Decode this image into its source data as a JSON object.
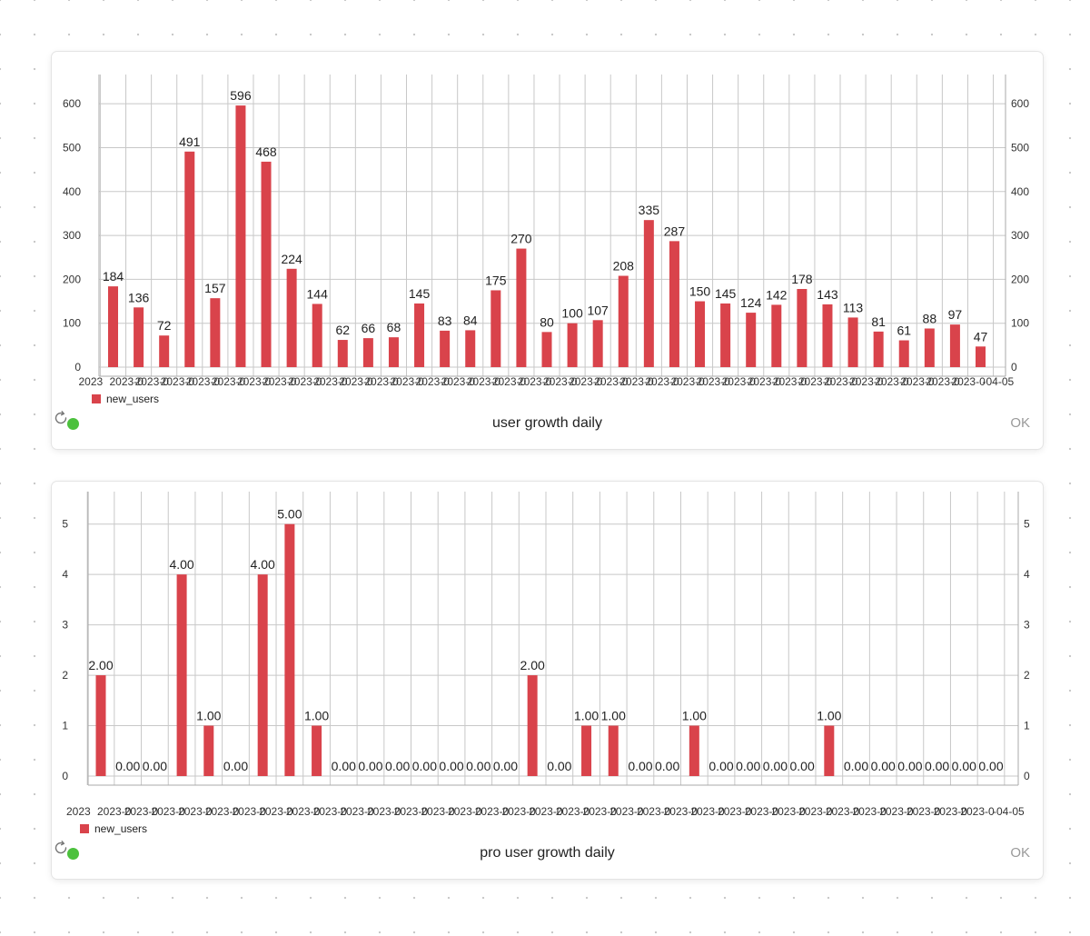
{
  "colors": {
    "bar": "#d9434b",
    "grid": "#c8c8c8",
    "status_ok": "#4cc13d"
  },
  "panels": [
    {
      "title": "user growth daily",
      "status": "OK",
      "status_icon": "status-dot-green",
      "refresh_icon": "refresh-icon",
      "legend": "new_users"
    },
    {
      "title": "pro user growth daily",
      "status": "OK",
      "status_icon": "status-dot-green",
      "refresh_icon": "refresh-icon",
      "legend": "new_users"
    }
  ],
  "chart_data": [
    {
      "type": "bar",
      "title": "user growth daily",
      "series": [
        {
          "name": "new_users",
          "values": [
            184,
            136,
            72,
            491,
            157,
            596,
            468,
            224,
            144,
            62,
            66,
            68,
            145,
            83,
            84,
            175,
            270,
            80,
            100,
            107,
            208,
            335,
            287,
            150,
            145,
            124,
            142,
            178,
            143,
            113,
            81,
            61,
            88,
            97,
            47
          ]
        }
      ],
      "ylim": [
        0,
        650
      ],
      "yticks": [
        0,
        100,
        200,
        300,
        400,
        500,
        600
      ],
      "ytick_labels": [
        "0",
        "100",
        "200",
        "300",
        "400",
        "500",
        "600"
      ],
      "data_labels": [
        "184",
        "136",
        "72",
        "491",
        "157",
        "596",
        "468",
        "224",
        "144",
        "62",
        "66",
        "68",
        "145",
        "83",
        "84",
        "175",
        "270",
        "80",
        "100",
        "107",
        "208",
        "335",
        "287",
        "150",
        "145",
        "124",
        "142",
        "178",
        "143",
        "113",
        "81",
        "61",
        "88",
        "97",
        "47"
      ],
      "x_first_label": "2023",
      "x_last_label": "-04-05",
      "x_overlap_label": "2023-0",
      "grid": true,
      "legend_position": "bottom-left",
      "y_axis_both_sides": true
    },
    {
      "type": "bar",
      "title": "pro user growth daily",
      "series": [
        {
          "name": "new_users",
          "values": [
            2,
            0,
            0,
            4,
            1,
            0,
            4,
            5,
            1,
            0,
            0,
            0,
            0,
            0,
            0,
            0,
            2,
            0,
            1,
            1,
            0,
            0,
            1,
            0,
            0,
            0,
            0,
            1,
            0,
            0,
            0,
            0,
            0,
            0
          ]
        }
      ],
      "ylim": [
        0,
        5.5
      ],
      "yticks": [
        0,
        1,
        2,
        3,
        4,
        5
      ],
      "ytick_labels": [
        "0",
        "1",
        "2",
        "3",
        "4",
        "5"
      ],
      "data_labels": [
        "2.00",
        "0.00",
        "0.00",
        "4.00",
        "1.00",
        "0.00",
        "4.00",
        "5.00",
        "1.00",
        "0.00",
        "0.00",
        "0.00",
        "0.00",
        "0.00",
        "0.00",
        "0.00",
        "2.00",
        "0.00",
        "1.00",
        "1.00",
        "0.00",
        "0.00",
        "1.00",
        "0.00",
        "0.00",
        "0.00",
        "0.00",
        "1.00",
        "0.00",
        "0.00",
        "0.00",
        "0.00",
        "0.00",
        "0.00"
      ],
      "x_first_label": "2023",
      "x_last_label": "-04-05",
      "x_overlap_label": "2023-0",
      "grid": true,
      "legend_position": "bottom-left",
      "y_axis_both_sides": true
    }
  ]
}
